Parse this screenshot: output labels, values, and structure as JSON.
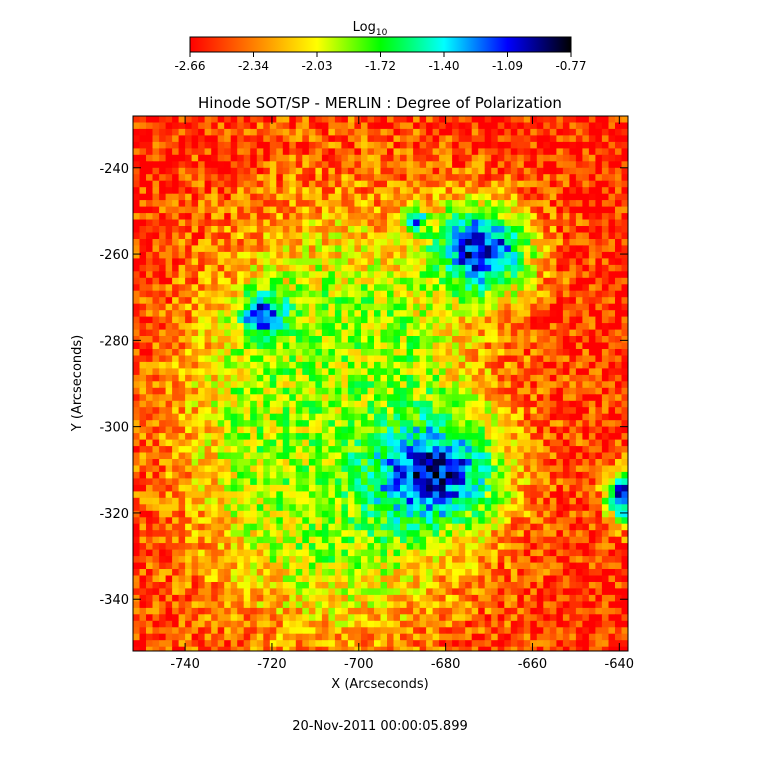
{
  "chart_data": {
    "type": "heatmap",
    "title": "Hinode SOT/SP - MERLIN : Degree of Polarization",
    "xlabel": "X (Arcseconds)",
    "ylabel": "Y (Arcseconds)",
    "xlim": [
      -752,
      -638
    ],
    "ylim": [
      -352,
      -228
    ],
    "x_ticks": [
      "-740",
      "-720",
      "-700",
      "-680",
      "-660",
      "-640"
    ],
    "x_tick_values": [
      -740,
      -720,
      -700,
      -680,
      -660,
      -640
    ],
    "y_ticks": [
      "-240",
      "-260",
      "-280",
      "-300",
      "-320",
      "-340"
    ],
    "y_tick_values": [
      -240,
      -260,
      -280,
      -300,
      -320,
      -340
    ],
    "colorbar": {
      "label_main": "Log",
      "label_sub": "10",
      "range": [
        -2.66,
        -0.77
      ],
      "ticks": [
        "-2.66",
        "-2.34",
        "-2.03",
        "-1.72",
        "-1.40",
        "-1.09",
        "-0.77"
      ],
      "colormap": [
        "#ff0000",
        "#ff7f00",
        "#ffff00",
        "#00ff00",
        "#00ffff",
        "#0000ff",
        "#000000"
      ]
    },
    "features": [
      {
        "name": "sunspot",
        "x": -672,
        "y": -259,
        "rx": 11,
        "ry": 10,
        "value": -1.0
      },
      {
        "name": "sunspot",
        "x": -683,
        "y": -311,
        "rx": 14,
        "ry": 11,
        "value": -1.0
      },
      {
        "name": "sunspot",
        "x": -722,
        "y": -274,
        "rx": 5,
        "ry": 5,
        "value": -1.05
      },
      {
        "name": "sunspot",
        "x": -639,
        "y": -316,
        "rx": 4,
        "ry": 6,
        "value": -1.05
      },
      {
        "name": "pore",
        "x": -687,
        "y": -252,
        "rx": 2.5,
        "ry": 2.5,
        "value": -1.15
      }
    ],
    "background_value": -2.55,
    "plage_value": -1.9,
    "grid": false
  },
  "footer": {
    "timestamp": "20-Nov-2011 00:00:05.899"
  }
}
